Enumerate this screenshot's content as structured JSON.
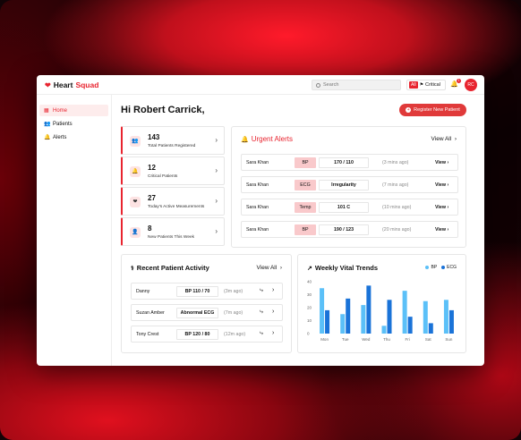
{
  "brand": {
    "name_part1": "Heart",
    "name_part2": "Squad"
  },
  "topbar": {
    "search_placeholder": "Search",
    "filter_badge": "All",
    "filter_label": "Critical",
    "notification_count": "1",
    "avatar_initials": "RC"
  },
  "sidebar": {
    "items": [
      {
        "label": "Home",
        "icon": "grid-icon",
        "active": true
      },
      {
        "label": "Patients",
        "icon": "users-icon",
        "active": false
      },
      {
        "label": "Alerts",
        "icon": "bell-icon",
        "active": false
      }
    ]
  },
  "main": {
    "greeting": "Hi Robert Carrick,",
    "register_label": "Register New Patient"
  },
  "stats": [
    {
      "value": "143",
      "label": "Total Patients Registered",
      "icon": "users-icon"
    },
    {
      "value": "12",
      "label": "Critical Patients",
      "icon": "bell-icon"
    },
    {
      "value": "27",
      "label": "Today's Active Measurements",
      "icon": "heart-icon"
    },
    {
      "value": "8",
      "label": "New Patients This Week",
      "icon": "user-add-icon"
    }
  ],
  "urgent_alerts": {
    "title": "Urgent Alerts",
    "view_all": "View All",
    "rows": [
      {
        "name": "Sara Khan",
        "type": "BP",
        "value": "170 / 110",
        "time": "(3 mins ago)",
        "action": "View"
      },
      {
        "name": "Sara Khan",
        "type": "ECG",
        "value": "Irregularity",
        "time": "(7 mins ago)",
        "action": "View"
      },
      {
        "name": "Sara Khan",
        "type": "Temp",
        "value": "101 C",
        "time": "(10 mins ago)",
        "action": "View"
      },
      {
        "name": "Sara Khan",
        "type": "BP",
        "value": "190 / 123",
        "time": "(20 mins ago)",
        "action": "View"
      }
    ]
  },
  "recent_activity": {
    "title": "Recent Patient Activity",
    "view_all": "View All",
    "rows": [
      {
        "name": "Danny",
        "value": "BP 110 / 70",
        "time": "(3m ago)"
      },
      {
        "name": "Suzan Amber",
        "value": "Abnormal ECG",
        "time": "(7m ago)"
      },
      {
        "name": "Tony Crest",
        "value": "BP 120 / 80",
        "time": "(12m ago)"
      }
    ]
  },
  "chart_data": {
    "type": "bar",
    "title": "Weekly Vital Trends",
    "categories": [
      "Mon",
      "Tue",
      "Wed",
      "Thu",
      "Fri",
      "Sat",
      "Sun"
    ],
    "series": [
      {
        "name": "BP",
        "color": "#5bc0f8",
        "values": [
          35,
          15,
          22,
          6,
          33,
          25,
          26
        ]
      },
      {
        "name": "ECG",
        "color": "#1a73d8",
        "values": [
          18,
          27,
          37,
          26,
          13,
          8,
          18
        ]
      }
    ],
    "yticks": [
      0,
      10,
      20,
      30,
      40
    ],
    "ylim": [
      0,
      40
    ],
    "grid": false,
    "legend": "top-right"
  }
}
